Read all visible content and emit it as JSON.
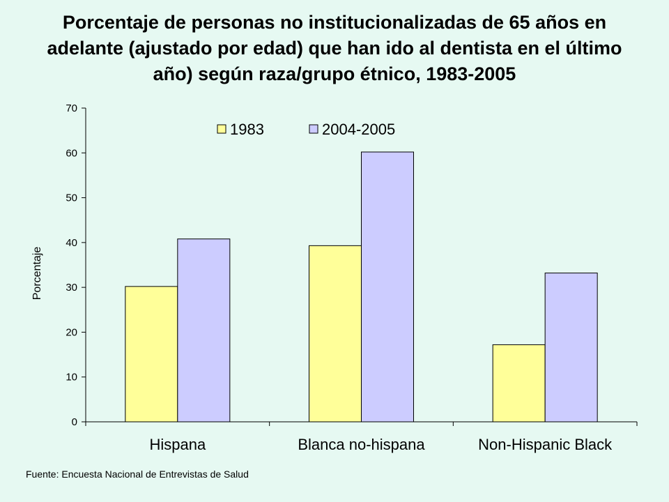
{
  "colors": {
    "background": "#e6f9f2",
    "series_1983": "#ffff99",
    "series_2004_2005": "#ccccff",
    "outline": "#000000"
  },
  "source": "Fuente: Encuesta Nacional de Entrevistas de Salud",
  "chart_data": {
    "type": "bar",
    "title": "Porcentaje de personas no institucionalizadas de 65 años en adelante (ajustado por edad) que han ido al dentista en el último año) según raza/grupo étnico, 1983-2005",
    "xlabel": "",
    "ylabel": "Porcentaje",
    "ylim": [
      0,
      70
    ],
    "yticks": [
      0,
      10,
      20,
      30,
      40,
      50,
      60,
      70
    ],
    "categories": [
      "Hispana",
      "Blanca no-hispana",
      "Non-Hispanic Black"
    ],
    "series": [
      {
        "name": "1983",
        "values": [
          30.2,
          39.3,
          17.2
        ]
      },
      {
        "name": "2004-2005",
        "values": [
          40.8,
          60.2,
          33.2
        ]
      }
    ],
    "grid": false,
    "legend_position": "top"
  }
}
